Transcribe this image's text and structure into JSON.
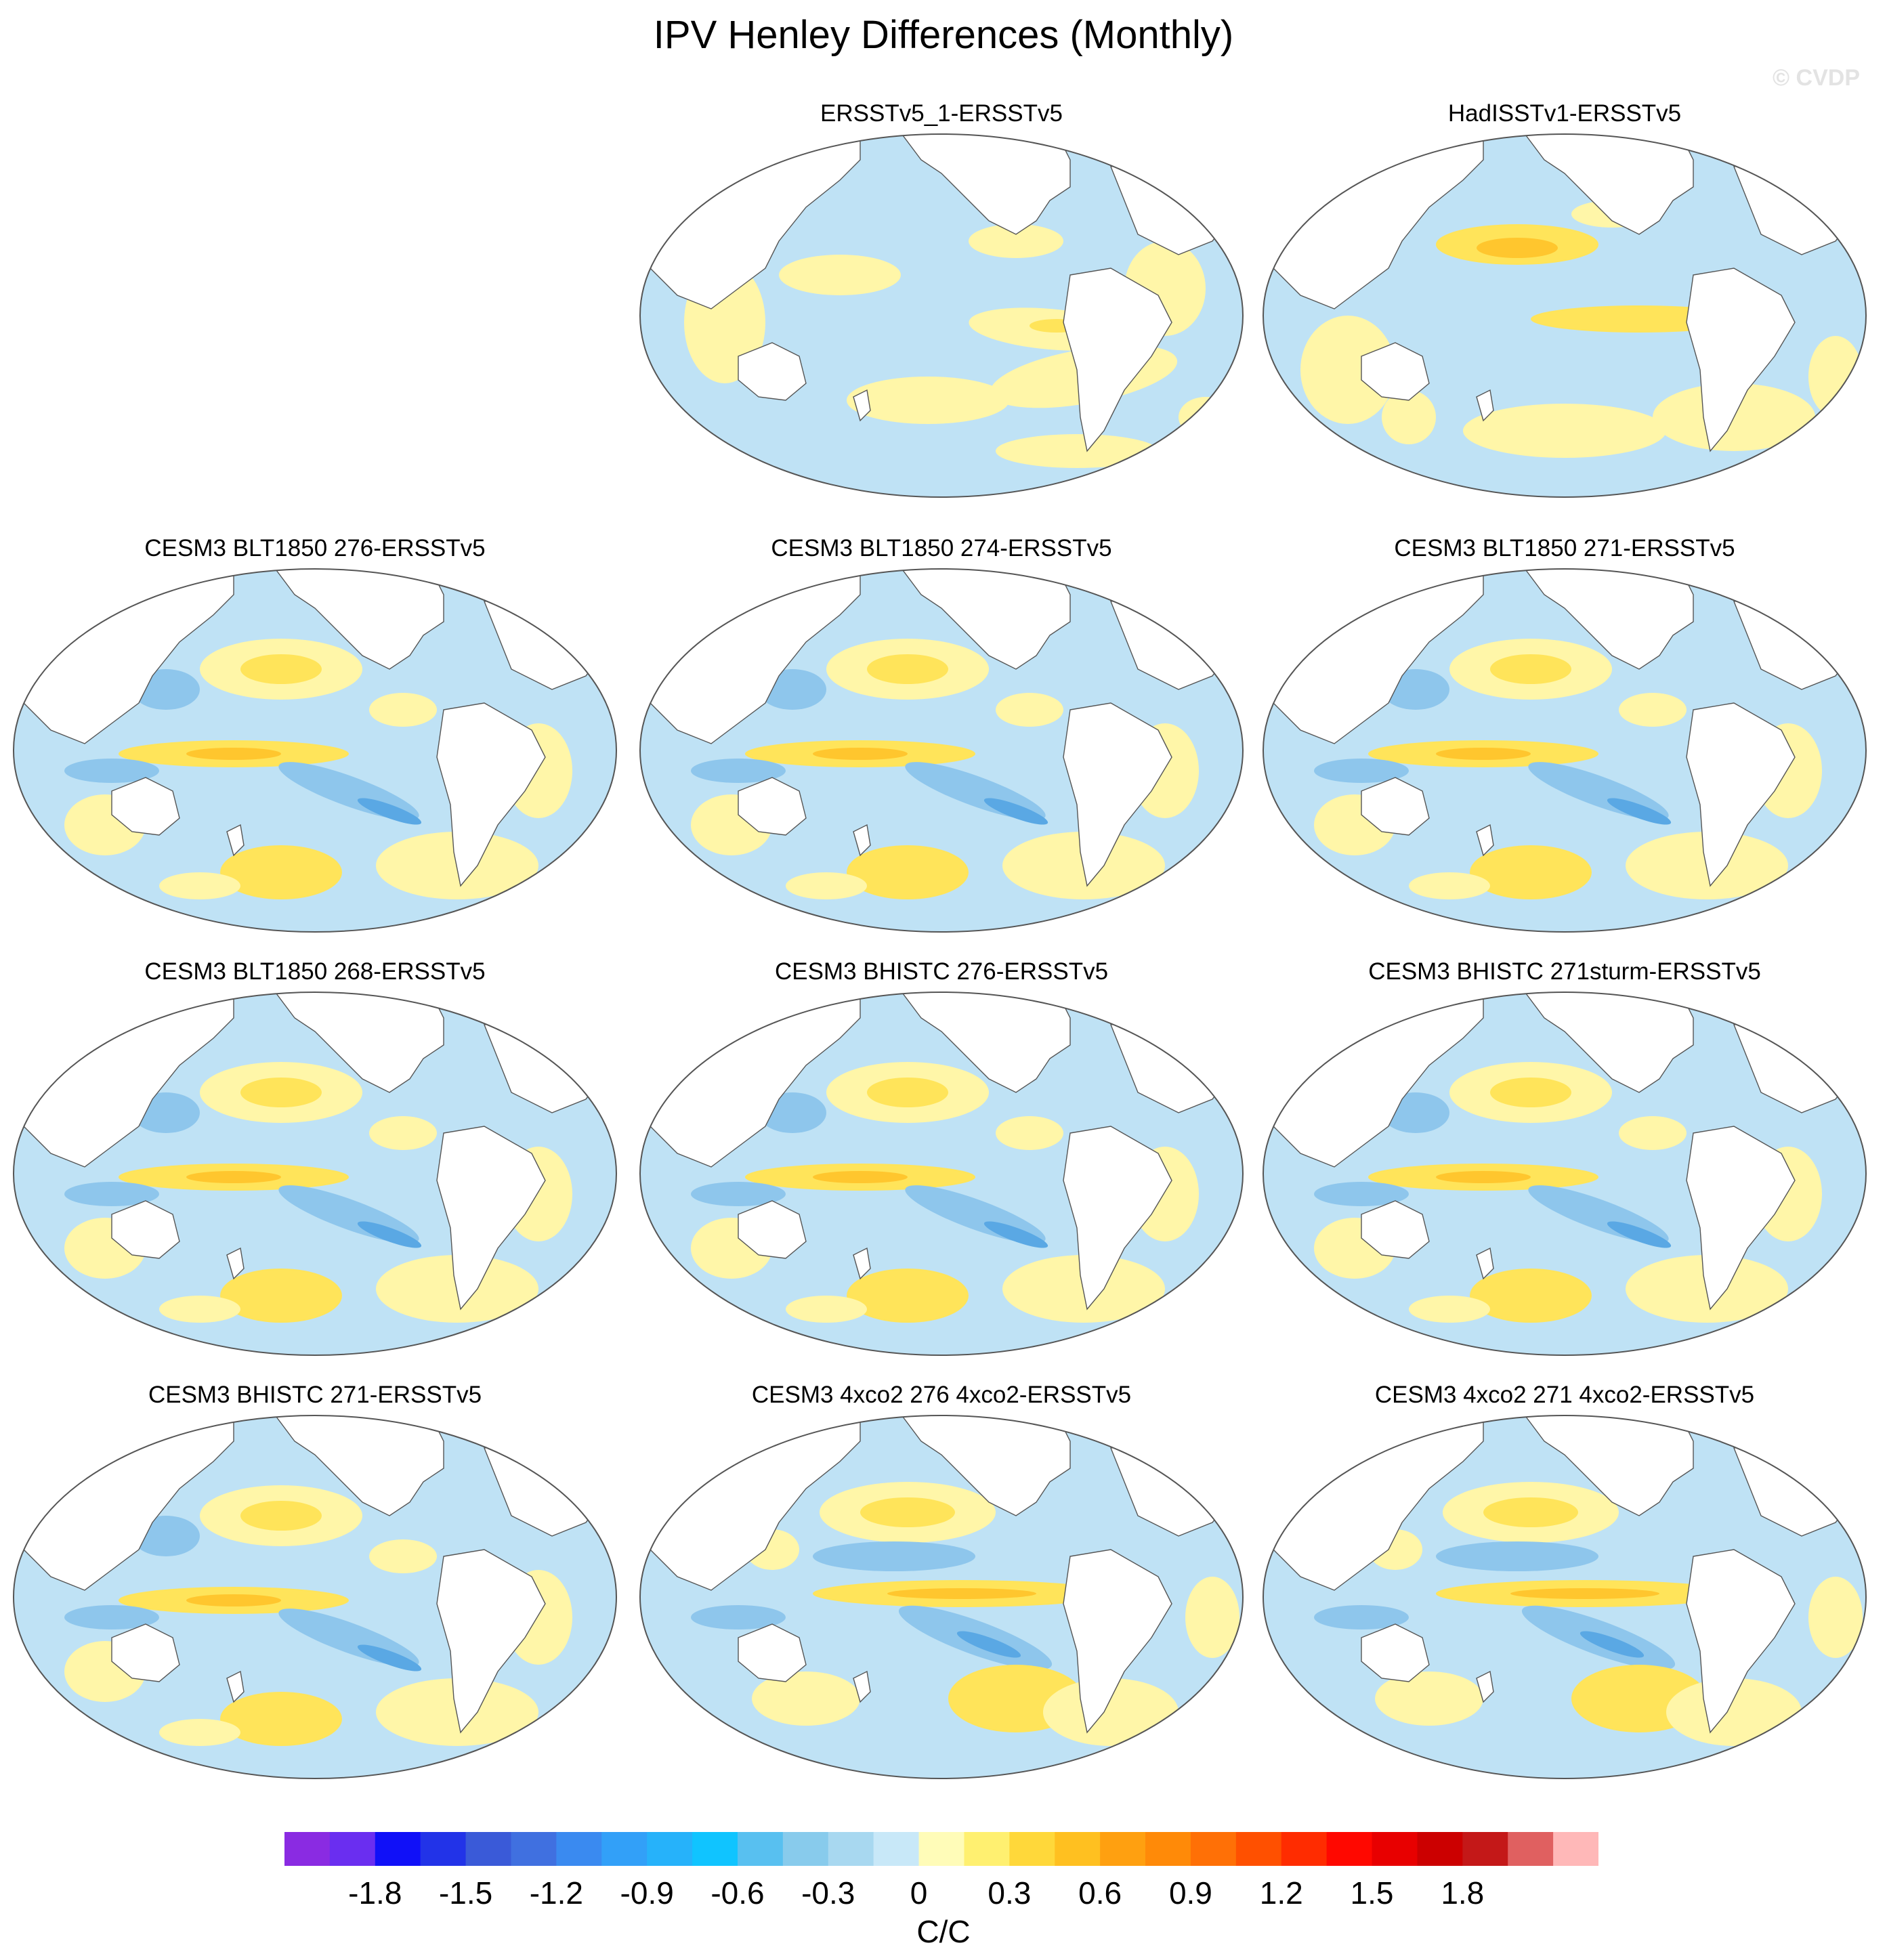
{
  "title": "IPV Henley Differences (Monthly)",
  "watermark": "© CVDP",
  "panels": [
    {
      "label": "ERSSTv5_1-ERSSTv5",
      "pattern": "obs1"
    },
    {
      "label": "HadISSTv1-ERSSTv5",
      "pattern": "obs2"
    },
    {
      "label": "CESM3 BLT1850 276-ERSSTv5",
      "pattern": "model"
    },
    {
      "label": "CESM3 BLT1850 274-ERSSTv5",
      "pattern": "model"
    },
    {
      "label": "CESM3 BLT1850 271-ERSSTv5",
      "pattern": "model"
    },
    {
      "label": "CESM3 BLT1850 268-ERSSTv5",
      "pattern": "model"
    },
    {
      "label": "CESM3 BHISTC 276-ERSSTv5",
      "pattern": "model"
    },
    {
      "label": "CESM3 BHISTC 271sturm-ERSSTv5",
      "pattern": "model"
    },
    {
      "label": "CESM3 BHISTC 271-ERSSTv5",
      "pattern": "model"
    },
    {
      "label": "CESM3 4xco2 276 4xco2-ERSSTv5",
      "pattern": "co2"
    },
    {
      "label": "CESM3 4xco2 271 4xco2-ERSSTv5",
      "pattern": "co2"
    }
  ],
  "colorbar": {
    "units": "C/C",
    "tick_labels": [
      "-1.8",
      "-1.5",
      "-1.2",
      "-0.9",
      "-0.6",
      "-0.3",
      "0",
      "0.3",
      "0.6",
      "0.9",
      "1.2",
      "1.5",
      "1.8"
    ],
    "colors": [
      "#8a2be2",
      "#6a2ef0",
      "#1010f8",
      "#2233e8",
      "#3a5ad8",
      "#4070e0",
      "#3a8af0",
      "#32a0f8",
      "#26b2fa",
      "#10c4ff",
      "#58c0f0",
      "#88cbec",
      "#a8d8f0",
      "#c8e8f8",
      "#fffcb8",
      "#fff070",
      "#ffd83a",
      "#ffc020",
      "#ffa010",
      "#ff8a08",
      "#ff7006",
      "#ff5000",
      "#ff2c00",
      "#ff0800",
      "#e80000",
      "#cc0000",
      "#c41818",
      "#e06060",
      "#ffb8b8"
    ]
  }
}
